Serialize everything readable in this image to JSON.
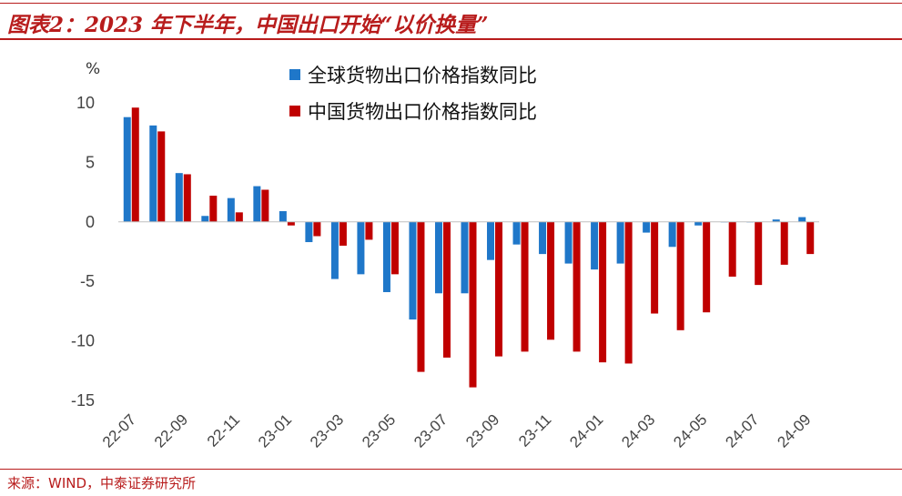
{
  "title": "图表2：2023 年下半年，中国出口开始“以价换量”",
  "source": "来源：WIND，中泰证券研究所",
  "chart_data": {
    "type": "bar",
    "unit": "%",
    "categories": [
      "22-07",
      "22-08",
      "22-09",
      "22-10",
      "22-11",
      "22-12",
      "23-01",
      "23-02",
      "23-03",
      "23-04",
      "23-05",
      "23-06",
      "23-07",
      "23-08",
      "23-09",
      "23-10",
      "23-11",
      "23-12",
      "24-01",
      "24-02",
      "24-03",
      "24-04",
      "24-05",
      "24-06",
      "24-07",
      "24-08",
      "24-09"
    ],
    "tick_labels": [
      "22-07",
      "22-09",
      "22-11",
      "23-01",
      "23-03",
      "23-05",
      "23-07",
      "23-09",
      "23-11",
      "24-01",
      "24-03",
      "24-05",
      "24-07",
      "24-09"
    ],
    "series": [
      {
        "name": "全球货物出口价格指数同比",
        "color": "#1f77c9",
        "values": [
          8.8,
          8.1,
          4.1,
          0.5,
          2.0,
          3.0,
          0.9,
          -1.7,
          -4.8,
          -4.4,
          -5.9,
          -8.2,
          -6.0,
          -6.0,
          -3.2,
          -1.9,
          -2.7,
          -3.5,
          -4.0,
          -3.5,
          -0.9,
          -2.1,
          -0.3,
          0.0,
          0.0,
          0.2,
          0.4
        ]
      },
      {
        "name": "中国货物出口价格指数同比",
        "color": "#c00000",
        "values": [
          9.6,
          7.6,
          4.0,
          2.2,
          0.8,
          2.7,
          -0.3,
          -1.2,
          -2.0,
          -1.5,
          -4.4,
          -12.6,
          -11.4,
          -13.9,
          -11.3,
          -10.9,
          -9.9,
          -10.9,
          -11.8,
          -11.9,
          -7.7,
          -9.1,
          -7.6,
          -4.6,
          -5.3,
          -3.6,
          -2.7
        ]
      }
    ],
    "ylim": [
      -15,
      10
    ],
    "yticks": [
      10,
      5,
      0,
      -5,
      -10,
      -15
    ],
    "legend_position": "top-center",
    "grid": false
  }
}
